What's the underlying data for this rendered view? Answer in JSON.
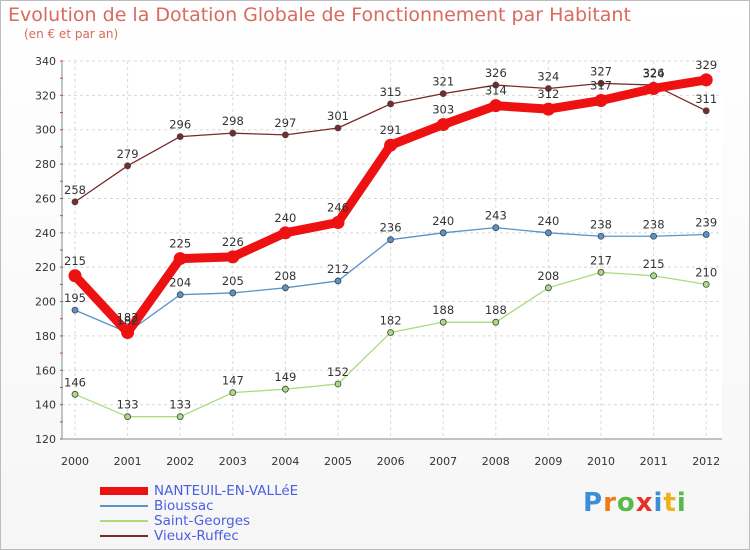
{
  "chart_data": {
    "type": "line",
    "title": "Evolution de la Dotation Globale de Fonctionnement par Habitant",
    "subtitle": "(en € et par an)",
    "categories": [
      "2000",
      "2001",
      "2002",
      "2003",
      "2004",
      "2005",
      "2006",
      "2007",
      "2008",
      "2009",
      "2010",
      "2011",
      "2012"
    ],
    "ylim": [
      120,
      340
    ],
    "yticks": [
      120,
      140,
      160,
      180,
      200,
      220,
      240,
      260,
      280,
      300,
      320,
      340
    ],
    "grid": true,
    "legend_position": "bottom-left",
    "series": [
      {
        "name": "NANTEUIL-EN-VALLéE",
        "color": "#ee1111",
        "values": [
          215,
          182,
          225,
          226,
          240,
          246,
          291,
          303,
          314,
          312,
          317,
          324,
          329
        ]
      },
      {
        "name": "Bioussac",
        "color": "#5a93c9",
        "values": [
          195,
          182,
          204,
          205,
          208,
          212,
          236,
          240,
          243,
          240,
          238,
          238,
          239
        ]
      },
      {
        "name": "Saint-Georges",
        "color": "#a8dc7e",
        "values": [
          146,
          133,
          133,
          147,
          149,
          152,
          182,
          188,
          188,
          208,
          217,
          215,
          210
        ]
      },
      {
        "name": "Vieux-Ruffec",
        "color": "#7a2a2a",
        "values": [
          258,
          279,
          296,
          298,
          297,
          301,
          315,
          321,
          326,
          324,
          327,
          326,
          311
        ]
      }
    ]
  },
  "logo": {
    "letters": [
      "P",
      "r",
      "o",
      "x",
      "i",
      "t",
      "i"
    ],
    "colors": [
      "#3a8fd8",
      "#f07a1a",
      "#5ab94a",
      "#e8302a",
      "#3a8fd8",
      "#f0b21a",
      "#5ab94a"
    ]
  }
}
